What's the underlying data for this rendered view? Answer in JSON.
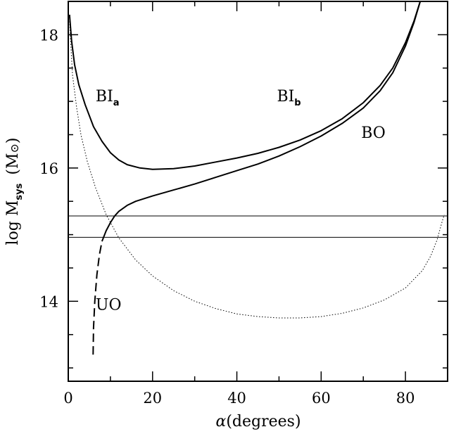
{
  "chart_data": {
    "type": "line",
    "title": "",
    "xlabel": {
      "symbol": "α",
      "text": "(degrees)"
    },
    "ylabel": {
      "prefix": "log M",
      "sub": "sys",
      "units_open": "(M",
      "units_sym": "⊙",
      "units_close": ")"
    },
    "xlim": [
      0,
      90
    ],
    "ylim": [
      12.8,
      18.5
    ],
    "x_ticks": [
      0,
      20,
      40,
      60,
      80
    ],
    "y_ticks": [
      14,
      16,
      18
    ],
    "grid": false,
    "series": [
      {
        "style": "solid",
        "points": [
          [
            0.3,
            18.3
          ],
          [
            0.8,
            17.9
          ],
          [
            1.5,
            17.55
          ],
          [
            2.5,
            17.25
          ],
          [
            4,
            16.95
          ],
          [
            6,
            16.62
          ],
          [
            8,
            16.4
          ],
          [
            10,
            16.23
          ],
          [
            12,
            16.12
          ],
          [
            14,
            16.05
          ],
          [
            17,
            16.0
          ],
          [
            20,
            15.98
          ],
          [
            25,
            15.99
          ],
          [
            30,
            16.03
          ],
          [
            35,
            16.09
          ],
          [
            40,
            16.15
          ],
          [
            45,
            16.22
          ],
          [
            50,
            16.31
          ],
          [
            55,
            16.42
          ],
          [
            60,
            16.56
          ],
          [
            65,
            16.74
          ],
          [
            70,
            16.98
          ],
          [
            74,
            17.24
          ],
          [
            77,
            17.5
          ],
          [
            80,
            17.88
          ],
          [
            82,
            18.2
          ],
          [
            83.5,
            18.5
          ]
        ]
      },
      {
        "style": "solid",
        "points": [
          [
            8,
            14.9
          ],
          [
            9,
            15.06
          ],
          [
            10,
            15.18
          ],
          [
            11,
            15.28
          ],
          [
            12,
            15.35
          ],
          [
            14,
            15.44
          ],
          [
            16,
            15.5
          ],
          [
            20,
            15.58
          ],
          [
            25,
            15.67
          ],
          [
            30,
            15.76
          ],
          [
            35,
            15.86
          ],
          [
            40,
            15.96
          ],
          [
            45,
            16.06
          ],
          [
            50,
            16.18
          ],
          [
            55,
            16.32
          ],
          [
            60,
            16.48
          ],
          [
            65,
            16.67
          ],
          [
            70,
            16.9
          ],
          [
            74,
            17.16
          ],
          [
            77,
            17.43
          ],
          [
            80,
            17.83
          ],
          [
            82,
            18.18
          ],
          [
            83.5,
            18.5
          ]
        ]
      },
      {
        "style": "dashed",
        "points": [
          [
            5.9,
            13.2
          ],
          [
            6,
            13.6
          ],
          [
            6.3,
            14.0
          ],
          [
            6.8,
            14.4
          ],
          [
            7.4,
            14.7
          ],
          [
            8,
            14.9
          ]
        ]
      },
      {
        "style": "dotted",
        "points": [
          [
            0.3,
            18.2
          ],
          [
            1,
            17.4
          ],
          [
            2,
            16.9
          ],
          [
            3,
            16.5
          ],
          [
            4.5,
            16.1
          ],
          [
            6.5,
            15.7
          ],
          [
            9,
            15.3
          ],
          [
            12,
            14.95
          ],
          [
            16,
            14.62
          ],
          [
            20,
            14.38
          ],
          [
            25,
            14.16
          ],
          [
            30,
            14.0
          ],
          [
            35,
            13.89
          ],
          [
            40,
            13.81
          ],
          [
            45,
            13.77
          ],
          [
            50,
            13.75
          ],
          [
            55,
            13.75
          ],
          [
            60,
            13.77
          ],
          [
            65,
            13.82
          ],
          [
            70,
            13.9
          ],
          [
            75,
            14.02
          ],
          [
            80,
            14.2
          ],
          [
            84,
            14.46
          ],
          [
            86,
            14.68
          ],
          [
            87.5,
            14.92
          ],
          [
            88.5,
            15.15
          ],
          [
            89.2,
            15.3
          ]
        ]
      }
    ],
    "reference_lines": [
      15.28,
      14.96
    ],
    "annotations": [
      {
        "text": "BI",
        "sub": "a",
        "x": 6.5,
        "y": 17.0
      },
      {
        "text": "BI",
        "sub": "b",
        "x": 49.5,
        "y": 17.0
      },
      {
        "text": "BO",
        "x": 69.5,
        "y": 16.45
      },
      {
        "text": "UO",
        "x": 6.5,
        "y": 13.87
      }
    ]
  }
}
